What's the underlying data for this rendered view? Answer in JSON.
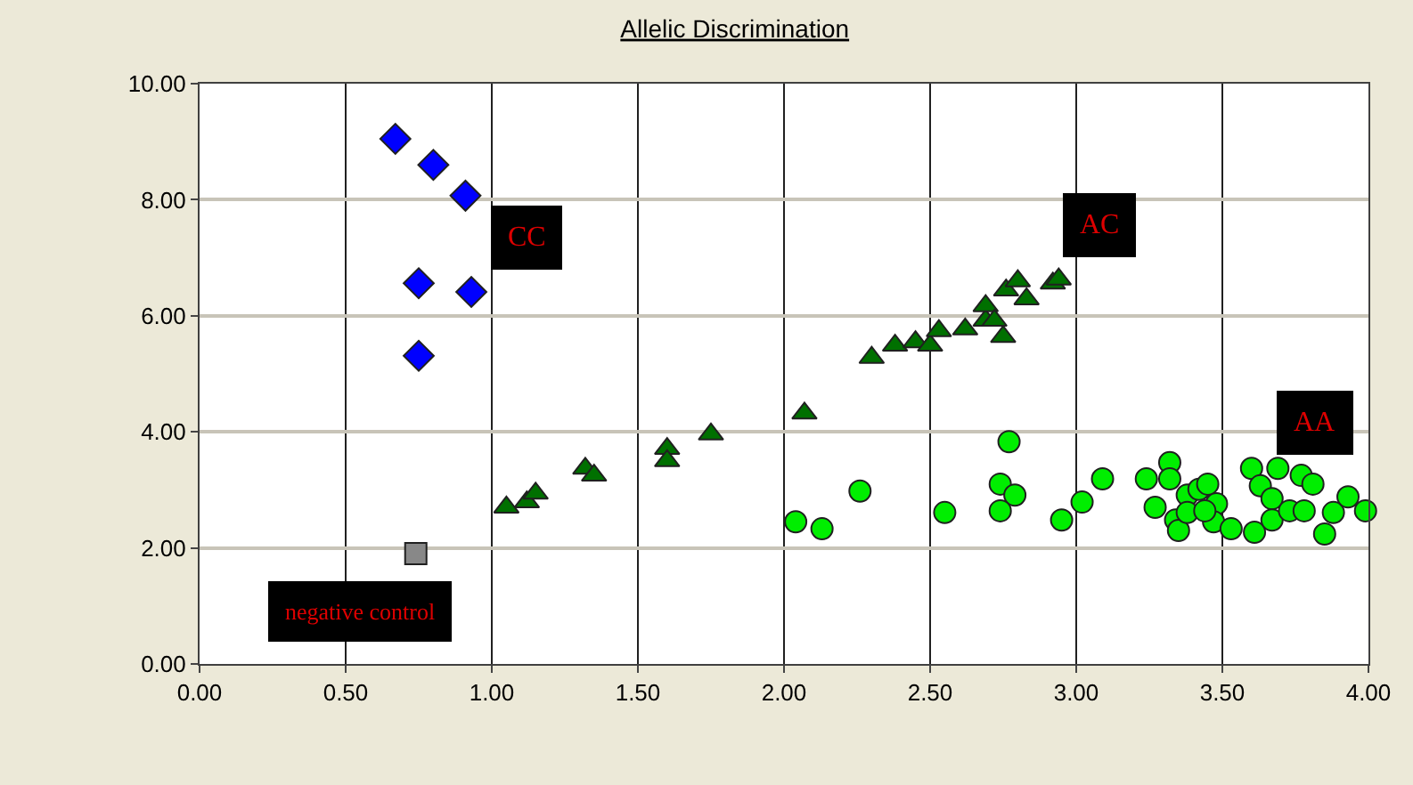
{
  "chart_data": {
    "type": "scatter",
    "title": "Allelic Discrimination",
    "series": [
      {
        "color": "#0000ff",
        "marker": "diamond",
        "x": [
          0.67,
          0.8,
          0.91,
          0.75,
          0.93,
          0.75
        ],
        "values": [
          9.05,
          8.6,
          8.07,
          6.56,
          6.41,
          5.31
        ]
      },
      {
        "color": "#007000",
        "marker": "triangle",
        "x": [
          1.05,
          1.12,
          1.15,
          1.32,
          1.35,
          1.6,
          1.6,
          1.75,
          2.07,
          2.3,
          2.38,
          2.45,
          2.5,
          2.53,
          2.62,
          2.69,
          2.69,
          2.72,
          2.75,
          2.76,
          2.8,
          2.83,
          2.92,
          2.94
        ],
        "values": [
          2.7,
          2.79,
          2.94,
          3.37,
          3.25,
          3.71,
          3.5,
          3.96,
          4.32,
          5.28,
          5.49,
          5.55,
          5.49,
          5.74,
          5.77,
          5.92,
          6.17,
          5.92,
          5.64,
          6.44,
          6.6,
          6.29,
          6.56,
          6.63
        ]
      },
      {
        "color": "#00ee00",
        "marker": "circle",
        "x": [
          2.04,
          2.13,
          2.26,
          2.55,
          2.77,
          2.74,
          2.79,
          2.74,
          2.95,
          3.02,
          3.09,
          3.24,
          3.32,
          3.27,
          3.34,
          3.35,
          3.38,
          3.42,
          3.45,
          3.48,
          3.47,
          3.53,
          3.6,
          3.61,
          3.63,
          3.69,
          3.67,
          3.67,
          3.73,
          3.77,
          3.78,
          3.81,
          3.85,
          3.88,
          3.93,
          3.99,
          3.32,
          3.38,
          3.44
        ],
        "values": [
          2.45,
          2.33,
          2.98,
          2.61,
          3.83,
          3.1,
          2.91,
          2.64,
          2.48,
          2.79,
          3.19,
          3.19,
          3.47,
          2.7,
          2.48,
          2.3,
          2.91,
          3.01,
          3.1,
          2.76,
          2.45,
          2.33,
          3.37,
          2.27,
          3.07,
          3.37,
          2.85,
          2.48,
          2.64,
          3.25,
          2.64,
          3.1,
          2.24,
          2.61,
          2.88,
          2.64,
          3.19,
          2.61,
          2.64
        ]
      },
      {
        "color": "#888888",
        "marker": "square",
        "x": [
          0.74
        ],
        "values": [
          1.9
        ]
      }
    ],
    "annotations": [
      "CC",
      "AC",
      "AA",
      "negative control"
    ],
    "xlim": [
      0,
      4
    ],
    "ylim": [
      0,
      10
    ],
    "xticks": [
      {
        "value": 0,
        "label": "0.00"
      },
      {
        "value": 0.5,
        "label": "0.50"
      },
      {
        "value": 1,
        "label": "1.00"
      },
      {
        "value": 1.5,
        "label": "1.50"
      },
      {
        "value": 2,
        "label": "2.00"
      },
      {
        "value": 2.5,
        "label": "2.50"
      },
      {
        "value": 3,
        "label": "3.00"
      },
      {
        "value": 3.5,
        "label": "3.50"
      },
      {
        "value": 4,
        "label": "4.00"
      }
    ],
    "yticks": [
      {
        "value": 0,
        "label": "0.00"
      },
      {
        "value": 2,
        "label": "2.00"
      },
      {
        "value": 4,
        "label": "4.00"
      },
      {
        "value": 6,
        "label": "6.00"
      },
      {
        "value": 8,
        "label": "8.00"
      },
      {
        "value": 10,
        "label": "10.00"
      }
    ],
    "grid": true
  }
}
